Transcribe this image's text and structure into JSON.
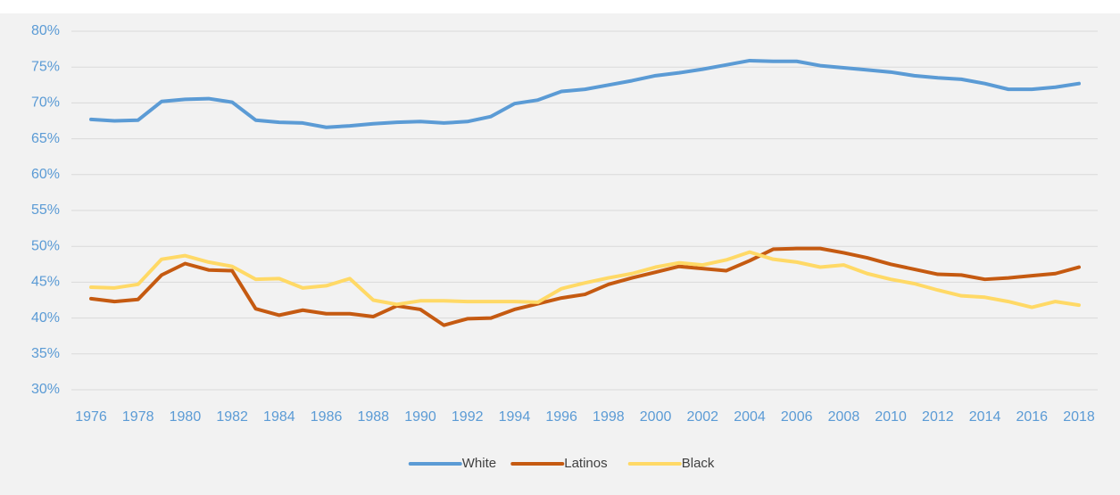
{
  "chart_data": {
    "type": "line",
    "x": [
      1976,
      1977,
      1978,
      1979,
      1980,
      1981,
      1982,
      1983,
      1984,
      1985,
      1986,
      1987,
      1988,
      1989,
      1990,
      1991,
      1992,
      1993,
      1994,
      1995,
      1996,
      1997,
      1998,
      1999,
      2000,
      2001,
      2002,
      2003,
      2004,
      2005,
      2006,
      2007,
      2008,
      2009,
      2010,
      2011,
      2012,
      2013,
      2014,
      2015,
      2016,
      2017,
      2018
    ],
    "series": [
      {
        "name": "White",
        "color": "#5b9bd5",
        "values": [
          67.7,
          67.5,
          67.6,
          70.2,
          70.5,
          70.6,
          70.1,
          67.6,
          67.3,
          67.2,
          66.6,
          66.8,
          67.1,
          67.3,
          67.4,
          67.2,
          67.4,
          68.1,
          69.9,
          70.4,
          71.6,
          71.9,
          72.5,
          73.1,
          73.8,
          74.2,
          74.7,
          75.3,
          75.9,
          75.8,
          75.8,
          75.2,
          74.9,
          74.6,
          74.3,
          73.8,
          73.5,
          73.3,
          72.7,
          71.9,
          71.9,
          72.2,
          72.7
        ]
      },
      {
        "name": "Latinos",
        "color": "#c55a11",
        "values": [
          42.7,
          42.3,
          42.6,
          46.0,
          47.6,
          46.7,
          46.6,
          41.3,
          40.4,
          41.1,
          40.6,
          40.6,
          40.2,
          41.7,
          41.2,
          39.0,
          39.9,
          40.0,
          41.2,
          42.0,
          42.8,
          43.3,
          44.7,
          45.6,
          46.4,
          47.2,
          46.9,
          46.6,
          48.0,
          49.6,
          49.7,
          49.7,
          49.1,
          48.4,
          47.5,
          46.8,
          46.1,
          46.0,
          45.4,
          45.6,
          45.9,
          46.2,
          47.1
        ]
      },
      {
        "name": "Black",
        "color": "#ffd966",
        "values": [
          44.3,
          44.2,
          44.7,
          48.2,
          48.7,
          47.8,
          47.2,
          45.4,
          45.5,
          44.2,
          44.5,
          45.5,
          42.5,
          41.9,
          42.4,
          42.4,
          42.3,
          42.3,
          42.3,
          42.2,
          44.1,
          44.9,
          45.6,
          46.2,
          47.1,
          47.7,
          47.4,
          48.1,
          49.2,
          48.2,
          47.8,
          47.1,
          47.4,
          46.2,
          45.4,
          44.8,
          43.9,
          43.1,
          42.9,
          42.3,
          41.5,
          42.3,
          41.8
        ]
      }
    ],
    "xlim": [
      1976,
      2018
    ],
    "xticks": [
      1976,
      1978,
      1980,
      1982,
      1984,
      1986,
      1988,
      1990,
      1992,
      1994,
      1996,
      1998,
      2000,
      2002,
      2004,
      2006,
      2008,
      2010,
      2012,
      2014,
      2016,
      2018
    ],
    "ylim": [
      30,
      80
    ],
    "yticks": [
      {
        "value": 30,
        "label": "30%"
      },
      {
        "value": 35,
        "label": "35%"
      },
      {
        "value": 40,
        "label": "40%"
      },
      {
        "value": 45,
        "label": "45%"
      },
      {
        "value": 50,
        "label": "50%"
      },
      {
        "value": 55,
        "label": "55%"
      },
      {
        "value": 60,
        "label": "60%"
      },
      {
        "value": 65,
        "label": "65%"
      },
      {
        "value": 70,
        "label": "70%"
      },
      {
        "value": 75,
        "label": "75%"
      },
      {
        "value": 80,
        "label": "80%"
      }
    ],
    "grid": true,
    "legend": "bottom"
  }
}
